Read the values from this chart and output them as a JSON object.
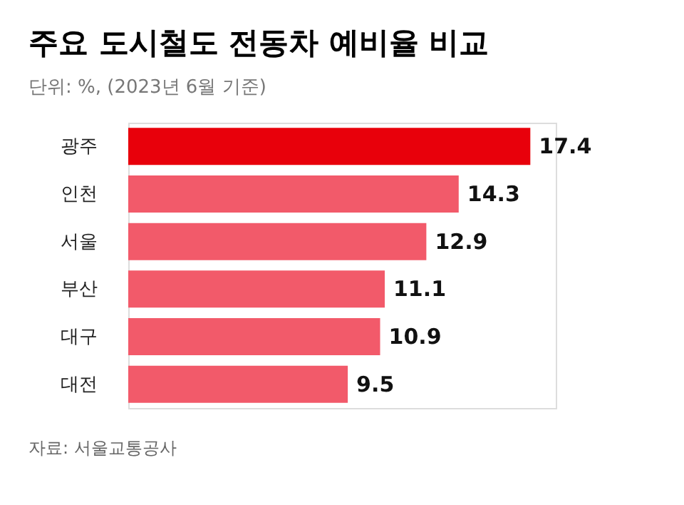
{
  "chart_data": {
    "type": "bar",
    "orientation": "horizontal",
    "title": "주요 도시철도 전동차 예비율 비교",
    "subtitle": "단위: %, (2023년 6월 기준)",
    "categories": [
      "광주",
      "인천",
      "서울",
      "부산",
      "대구",
      "대전"
    ],
    "values": [
      17.4,
      14.3,
      12.9,
      11.1,
      10.9,
      9.5
    ],
    "colors": [
      "#e8000b",
      "#f25a6a",
      "#f25a6a",
      "#f25a6a",
      "#f25a6a",
      "#f25a6a"
    ],
    "xlim": [
      0,
      18.5
    ],
    "data_labels": true,
    "tick_labels": "y",
    "annotations": [
      "자료: 서울교통공사"
    ]
  }
}
